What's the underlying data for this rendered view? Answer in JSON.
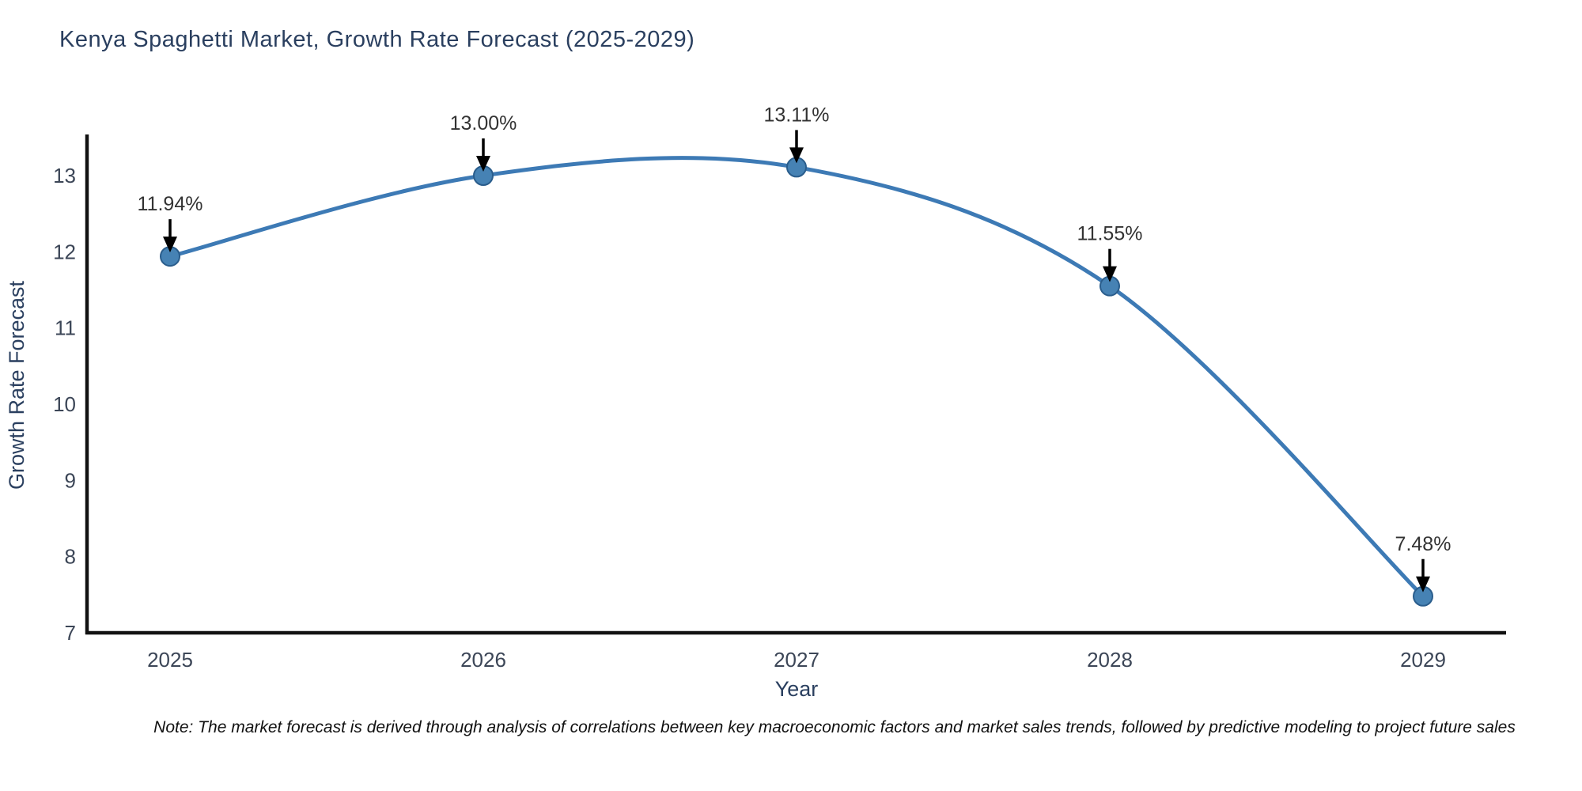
{
  "title": "Kenya Spaghetti Market, Growth Rate Forecast (2025-2029)",
  "note": "Note: The market forecast is derived through analysis of correlations between key macroeconomic factors and market sales trends, followed by predictive modeling to project future sales",
  "chart_data": {
    "type": "line",
    "title": "Kenya Spaghetti Market, Growth Rate Forecast (2025-2029)",
    "categories": [
      "2025",
      "2026",
      "2027",
      "2028",
      "2029"
    ],
    "series": [
      {
        "name": "Growth Rate Forecast",
        "values": [
          11.94,
          13.0,
          13.11,
          11.55,
          7.48
        ]
      }
    ],
    "point_labels": [
      "11.94%",
      "13.00%",
      "13.11%",
      "11.55%",
      "7.48%"
    ],
    "xlabel": "Year",
    "ylabel": "Growth Rate Forecast",
    "ylim": [
      7,
      13
    ],
    "yticks": [
      7,
      8,
      9,
      10,
      11,
      12,
      13
    ],
    "grid": false,
    "legend": false,
    "annotation_style": "down-arrow",
    "colors": {
      "line": "#3d7ab5",
      "marker_fill": "#4682b4",
      "marker_edge": "#2a5d8c",
      "title": "#2a3f5f",
      "axis_label": "#2a3f5f",
      "tick_label": "#3c4657",
      "annotation": "#333333",
      "arrow": "#000000",
      "axis_line": "#111111",
      "background": "#ffffff"
    }
  }
}
